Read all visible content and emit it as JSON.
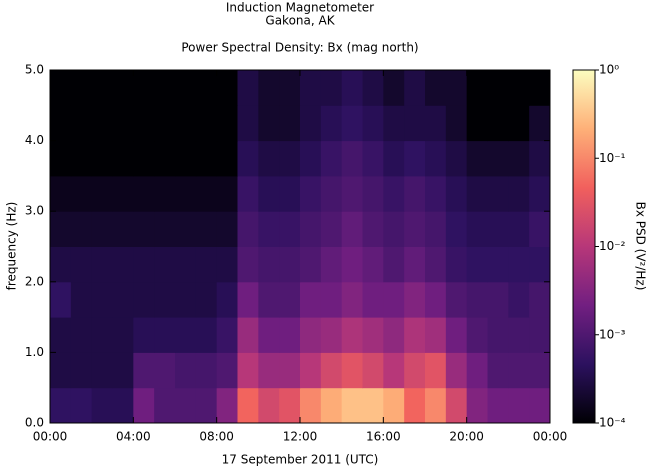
{
  "chart_data": {
    "type": "heatmap",
    "title": "Induction Magnetometer",
    "subtitle": "Gakona, AK",
    "plot_title": "Power Spectral Density: Bx (mag north)",
    "x_label": "17 September 2011 (UTC)",
    "y_label": "frequency (Hz)",
    "colorbar_label": "Bx PSD (V²/Hz)",
    "xlim": [
      0,
      24
    ],
    "xticks": [
      {
        "value": 0,
        "label": "00:00"
      },
      {
        "value": 4,
        "label": "04:00"
      },
      {
        "value": 8,
        "label": "08:00"
      },
      {
        "value": 12,
        "label": "12:00"
      },
      {
        "value": 16,
        "label": "16:00"
      },
      {
        "value": 20,
        "label": "20:00"
      },
      {
        "value": 24,
        "label": "00:00"
      }
    ],
    "ylim": [
      0,
      5
    ],
    "yticks": [
      {
        "value": 0,
        "label": "0.0"
      },
      {
        "value": 1,
        "label": "1.0"
      },
      {
        "value": 2,
        "label": "2.0"
      },
      {
        "value": 3,
        "label": "3.0"
      },
      {
        "value": 4,
        "label": "4.0"
      },
      {
        "value": 5,
        "label": "5.0"
      }
    ],
    "zlim": [
      0.0001,
      1
    ],
    "zscale": "log",
    "zticks": [
      {
        "value": 0.0001,
        "label": "10⁻⁴"
      },
      {
        "value": 0.001,
        "label": "10⁻³"
      },
      {
        "value": 0.01,
        "label": "10⁻²"
      },
      {
        "value": 0.1,
        "label": "10⁻¹"
      },
      {
        "value": 1,
        "label": "10⁰"
      }
    ],
    "colormap": [
      "#000004",
      "#2c115f",
      "#721f81",
      "#b73779",
      "#f1605d",
      "#feb078",
      "#fcfdbf"
    ],
    "x": [
      0.5,
      1.5,
      2.5,
      3.5,
      4.5,
      5.5,
      6.5,
      7.5,
      8.5,
      9.5,
      10.5,
      11.5,
      12.5,
      13.5,
      14.5,
      15.5,
      16.5,
      17.5,
      18.5,
      19.5,
      20.5,
      21.5,
      22.5,
      23.5
    ],
    "y": [
      0.25,
      0.75,
      1.25,
      1.75,
      2.25,
      2.75,
      3.25,
      3.75,
      4.25,
      4.75
    ],
    "z": [
      [
        0.0005,
        0.0005,
        0.0004,
        0.0004,
        0.002,
        0.001,
        0.001,
        0.001,
        0.003,
        0.05,
        0.02,
        0.03,
        0.1,
        0.2,
        0.3,
        0.3,
        0.2,
        0.05,
        0.1,
        0.02,
        0.003,
        0.002,
        0.002,
        0.002
      ],
      [
        0.0003,
        0.0003,
        0.0003,
        0.0003,
        0.001,
        0.001,
        0.0008,
        0.0008,
        0.001,
        0.01,
        0.005,
        0.005,
        0.01,
        0.02,
        0.03,
        0.02,
        0.01,
        0.02,
        0.03,
        0.005,
        0.002,
        0.001,
        0.001,
        0.001
      ],
      [
        0.0003,
        0.0003,
        0.0003,
        0.0003,
        0.0004,
        0.0004,
        0.0004,
        0.0004,
        0.0006,
        0.005,
        0.002,
        0.002,
        0.004,
        0.005,
        0.008,
        0.006,
        0.004,
        0.008,
        0.006,
        0.002,
        0.001,
        0.0008,
        0.0008,
        0.0008
      ],
      [
        0.0005,
        0.0003,
        0.0003,
        0.0003,
        0.0003,
        0.0003,
        0.0003,
        0.0003,
        0.0004,
        0.002,
        0.001,
        0.001,
        0.002,
        0.002,
        0.003,
        0.002,
        0.002,
        0.003,
        0.002,
        0.001,
        0.0008,
        0.0008,
        0.0006,
        0.0008
      ],
      [
        0.0003,
        0.0003,
        0.0003,
        0.0003,
        0.0003,
        0.0003,
        0.0003,
        0.0003,
        0.0003,
        0.001,
        0.0008,
        0.0008,
        0.001,
        0.0015,
        0.002,
        0.0015,
        0.001,
        0.0015,
        0.001,
        0.0006,
        0.0005,
        0.0005,
        0.0005,
        0.0005
      ],
      [
        0.0002,
        0.0002,
        0.0002,
        0.0002,
        0.0002,
        0.0002,
        0.0002,
        0.0002,
        0.0002,
        0.0008,
        0.0006,
        0.0006,
        0.0008,
        0.001,
        0.0015,
        0.001,
        0.0008,
        0.001,
        0.0008,
        0.0005,
        0.0004,
        0.0004,
        0.0004,
        0.0006
      ],
      [
        0.00015,
        0.00015,
        0.00015,
        0.00015,
        0.00015,
        0.00015,
        0.00015,
        0.00015,
        0.00015,
        0.0006,
        0.0004,
        0.0004,
        0.0006,
        0.0008,
        0.001,
        0.0008,
        0.0006,
        0.0008,
        0.0006,
        0.0004,
        0.0003,
        0.0003,
        0.0003,
        0.0004
      ],
      [
        0.0001,
        0.0001,
        0.0001,
        0.0001,
        0.0001,
        0.0001,
        0.0001,
        0.0001,
        0.0001,
        0.0004,
        0.0003,
        0.0003,
        0.0004,
        0.0006,
        0.0008,
        0.0006,
        0.0004,
        0.0005,
        0.0004,
        0.0003,
        0.0002,
        0.0002,
        0.0002,
        0.0003
      ],
      [
        0.0001,
        0.0001,
        0.0001,
        0.0001,
        0.0001,
        0.0001,
        0.0001,
        0.0001,
        0.0001,
        0.0003,
        0.0002,
        0.0002,
        0.0003,
        0.0004,
        0.0005,
        0.0004,
        0.0003,
        0.0003,
        0.0003,
        0.0002,
        0.0001,
        0.0001,
        0.0001,
        0.0002
      ],
      [
        0.0001,
        0.0001,
        0.0001,
        0.0001,
        0.0001,
        0.0001,
        0.0001,
        0.0001,
        0.0001,
        0.0003,
        0.0002,
        0.0002,
        0.0003,
        0.0003,
        0.0004,
        0.0003,
        0.0002,
        0.0003,
        0.0002,
        0.0002,
        0.0001,
        0.0001,
        0.0001,
        0.0001
      ]
    ]
  }
}
